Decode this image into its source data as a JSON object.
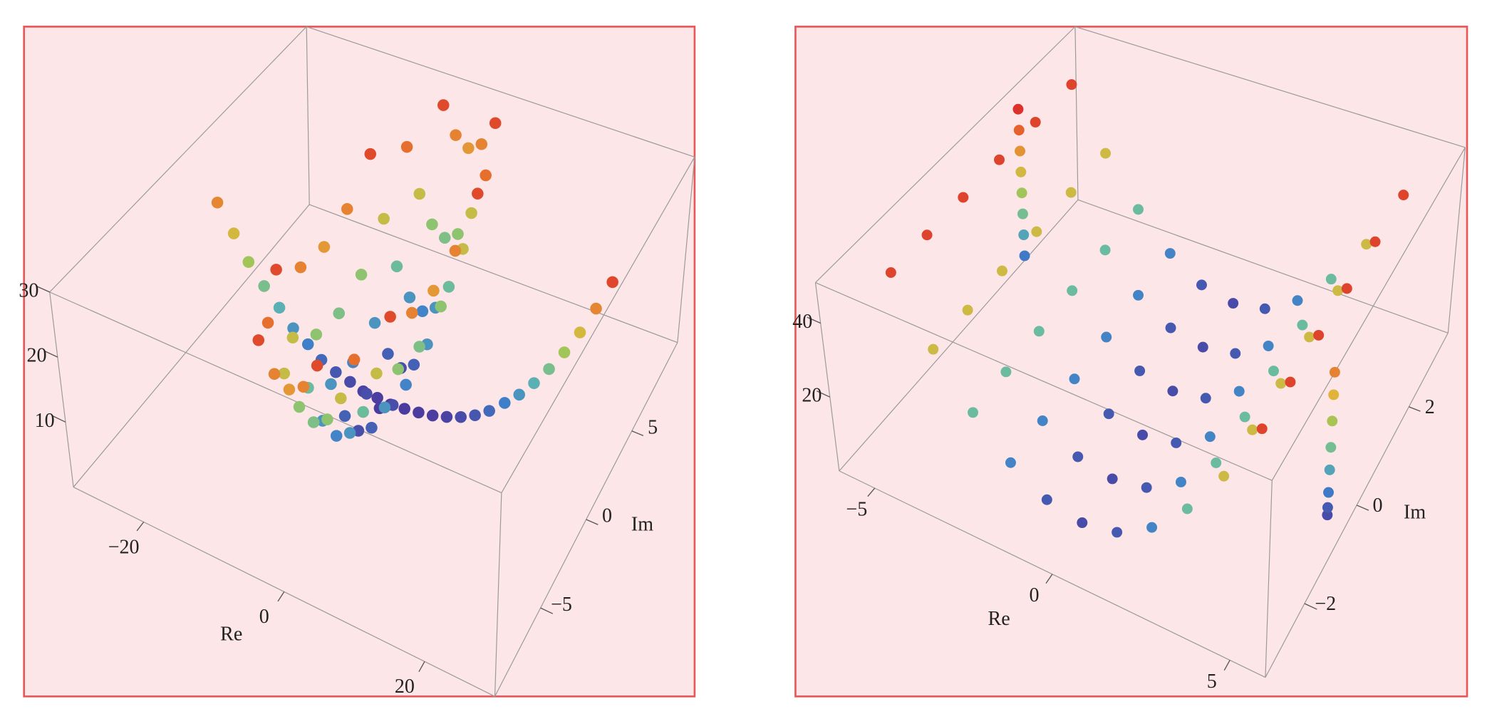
{
  "chart_data": [
    {
      "type": "scatter3d",
      "xlabel": "Re",
      "ylabel": "Im",
      "colormap": "rainbow",
      "xlim": [
        -30,
        30
      ],
      "ylim": [
        -10,
        10
      ],
      "zlim": [
        0,
        30
      ],
      "xticks": [
        {
          "value": -20,
          "label": "−20"
        },
        0,
        20
      ],
      "yticks": [
        {
          "value": -5,
          "label": "−5"
        },
        0,
        5
      ],
      "zticks": [
        10,
        20,
        30
      ],
      "x": [
        -11,
        -11,
        -11,
        -11,
        -11,
        -9,
        -9,
        -9,
        -9,
        -9,
        -9,
        -9,
        -7,
        -7,
        -7,
        -7,
        -7,
        -7,
        -7,
        -7,
        -7,
        -5,
        -5,
        -5,
        -5,
        -5,
        -5,
        -5,
        -5,
        -5,
        -3,
        -3,
        -3,
        -3,
        -3,
        -3,
        -3,
        -3,
        -3,
        -1,
        -1,
        -1,
        -1,
        -1,
        -1,
        -1,
        -1,
        -1,
        1,
        1,
        1,
        1,
        1,
        1,
        1,
        1,
        1,
        3,
        3,
        3,
        3,
        3,
        3,
        3,
        5,
        5,
        5,
        5,
        5,
        0,
        2,
        4,
        6,
        8,
        10,
        12,
        14,
        16,
        18,
        20,
        22,
        24,
        26,
        28,
        -2,
        -4,
        -6,
        -8,
        -10,
        -12,
        -14,
        -16,
        -18,
        -20,
        -22,
        -24,
        -26
      ],
      "y": [
        -3,
        -1,
        1,
        3,
        5,
        -5,
        -3,
        -1,
        1,
        3,
        5,
        7,
        -7,
        -5,
        -3,
        -1,
        1,
        3,
        5,
        7,
        9,
        -7,
        -5,
        -3,
        -1,
        1,
        3,
        5,
        7,
        9,
        -7,
        -5,
        -3,
        -1,
        1,
        3,
        5,
        7,
        9,
        -7,
        -5,
        -3,
        -1,
        1,
        3,
        5,
        7,
        9,
        -7,
        -5,
        -3,
        -1,
        1,
        3,
        5,
        7,
        9,
        -5,
        -3,
        -1,
        1,
        3,
        5,
        7,
        -3,
        -1,
        1,
        3,
        5,
        1.5,
        1.6,
        1.7,
        1.8,
        1.9,
        2.0,
        2.1,
        2.3,
        2.4,
        2.5,
        2.6,
        2.7,
        2.8,
        2.9,
        3.0,
        1.4,
        1.4,
        1.3,
        1.3,
        1.2,
        1.1,
        1.1,
        1,
        1,
        0.9,
        0.8,
        0.8,
        0.7
      ],
      "z": [
        27.7,
        23.5,
        22.1,
        23.5,
        27.7,
        24.9,
        18,
        13.8,
        12.4,
        13.8,
        18,
        24.9,
        27.7,
        18,
        11.1,
        6.9,
        5.5,
        6.9,
        11.1,
        18,
        27.7,
        23.5,
        13.8,
        6.9,
        2.8,
        1.4,
        2.8,
        6.9,
        13.8,
        23.5,
        22.1,
        12.4,
        5.5,
        1.4,
        0,
        1.4,
        5.5,
        12.4,
        22.1,
        23.5,
        13.8,
        6.9,
        2.8,
        1.4,
        2.8,
        6.9,
        13.8,
        23.5,
        27.7,
        18,
        11.1,
        6.9,
        5.5,
        6.9,
        11.1,
        18,
        27.7,
        24.9,
        18,
        13.8,
        12.4,
        13.8,
        18,
        24.9,
        27.7,
        23.5,
        22.1,
        23.5,
        27.7,
        0,
        0.04,
        0.2,
        0.6,
        1.2,
        2.1,
        3.4,
        5,
        6.9,
        9.3,
        12.1,
        15.3,
        19,
        23.3,
        28,
        0.04,
        0.2,
        0.6,
        1.2,
        2.1,
        3.4,
        5,
        6.9,
        9.3,
        12.1,
        15.3,
        19,
        23.3
      ]
    },
    {
      "type": "scatter3d",
      "xlabel": "Re",
      "ylabel": "Im",
      "colormap": "rainbow",
      "xlim": [
        -6,
        6
      ],
      "ylim": [
        -3.5,
        3.5
      ],
      "zlim": [
        0,
        51
      ],
      "xticks": [
        {
          "value": -5,
          "label": "−5"
        },
        0,
        5
      ],
      "yticks": [
        {
          "value": -2,
          "label": "−2"
        },
        0,
        2
      ],
      "zticks": [
        20,
        40
      ],
      "x": [
        -5,
        -4,
        -3,
        -2,
        -1,
        0,
        1,
        2,
        3,
        4,
        5,
        -5,
        -4,
        -3,
        -2,
        -1,
        0,
        1,
        2,
        3,
        4,
        5,
        -5,
        -4,
        -3,
        -2,
        -1,
        0,
        1,
        2,
        3,
        4,
        5,
        -5,
        -4,
        -3,
        -2,
        -1,
        0,
        1,
        2,
        3,
        4,
        5,
        -5,
        -4,
        -3,
        -2,
        -1,
        0,
        1,
        2,
        3,
        4,
        5,
        -5,
        -4,
        -3,
        -2,
        -1,
        0,
        1,
        2,
        3,
        4,
        5,
        -5.5,
        -5.5,
        -5.5,
        -5.5,
        -5.5,
        -5.5,
        -5.5,
        -5.5,
        5.5,
        5.5,
        5.5,
        5.5,
        5.5,
        5.5,
        5.5,
        5.5
      ],
      "y": [
        -2.5,
        -2.5,
        -2.5,
        -2.5,
        -2.5,
        -2.5,
        -2.5,
        -2.5,
        -2.5,
        -2.5,
        -2.5,
        -1.5,
        -1.5,
        -1.5,
        -1.5,
        -1.5,
        -1.5,
        -1.5,
        -1.5,
        -1.5,
        -1.5,
        -1.5,
        -0.5,
        -0.5,
        -0.5,
        -0.5,
        -0.5,
        -0.5,
        -0.5,
        -0.5,
        -0.5,
        -0.5,
        -0.5,
        0.5,
        0.5,
        0.5,
        0.5,
        0.5,
        0.5,
        0.5,
        0.5,
        0.5,
        0.5,
        0.5,
        1.5,
        1.5,
        1.5,
        1.5,
        1.5,
        1.5,
        1.5,
        1.5,
        1.5,
        1.5,
        1.5,
        2.5,
        2.5,
        2.5,
        2.5,
        2.5,
        2.5,
        2.5,
        2.5,
        2.5,
        2.5,
        2.5,
        1.5,
        1.5,
        1.5,
        1.5,
        1.5,
        1.5,
        1.5,
        1.5,
        -0.5,
        -0.5,
        -0.5,
        -0.5,
        -0.5,
        -0.5,
        -0.5,
        -0.5
      ],
      "z": [
        48,
        31.4,
        18.6,
        9.4,
        3.8,
        2,
        3.8,
        9.4,
        18.6,
        31.4,
        48,
        48,
        31.4,
        18.6,
        9.4,
        3.8,
        2,
        3.8,
        9.4,
        18.6,
        31.4,
        48,
        48,
        31.4,
        18.6,
        9.4,
        3.8,
        2,
        3.8,
        9.4,
        18.6,
        31.4,
        48,
        48,
        31.4,
        18.6,
        9.4,
        3.8,
        2,
        3.8,
        9.4,
        18.6,
        31.4,
        48,
        48,
        31.4,
        18.6,
        9.4,
        3.8,
        2,
        3.8,
        9.4,
        18.6,
        31.4,
        48,
        48,
        31.4,
        18.6,
        9.4,
        3.8,
        2,
        3.8,
        9.4,
        18.6,
        31.4,
        48,
        8,
        14,
        20,
        26,
        32,
        38,
        44,
        50,
        2,
        4,
        8,
        14,
        20,
        27,
        34,
        40
      ]
    }
  ]
}
